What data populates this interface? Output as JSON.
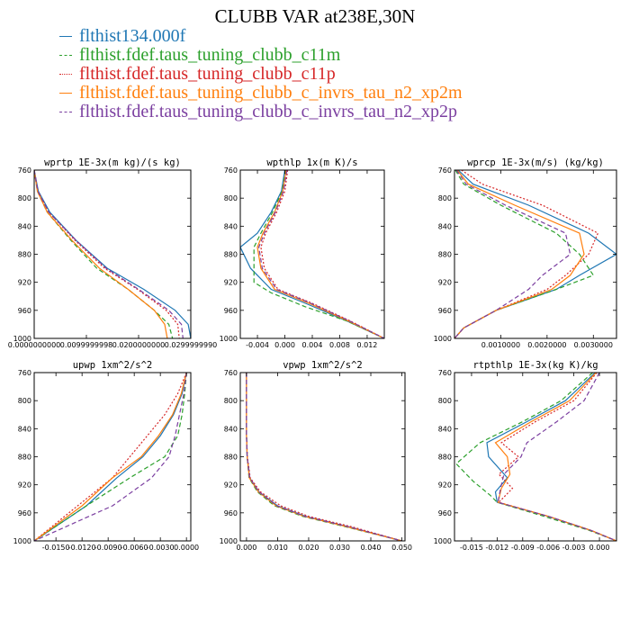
{
  "title": "CLUBB VAR at238E,30N",
  "legend": [
    {
      "label": "flthist134.000f",
      "color": "#1f77b4",
      "dash": "solid"
    },
    {
      "label": "flthist.fdef.taus_tuning_clubb_c11m",
      "color": "#2ca02c",
      "dash": "dashed"
    },
    {
      "label": "flthist.fdef.taus_tuning_clubb_c11p",
      "color": "#d62728",
      "dash": "dotted"
    },
    {
      "label": "flthist.fdef.taus_tuning_clubb_c_invrs_tau_n2_xp2m",
      "color": "#ff7f0e",
      "dash": "solid"
    },
    {
      "label": "flthist.fdef.taus_tuning_clubb_c_invrs_tau_n2_xp2p",
      "color": "#7b3fa0",
      "dash": "dashed"
    }
  ],
  "chart_data": [
    {
      "type": "line",
      "title": "wprtp  1E-3x(m kg)/(s kg)",
      "xlim": [
        0,
        0.03
      ],
      "ylim": [
        760,
        1000
      ],
      "y_reversed": true,
      "xticks": [
        "0.0000000000",
        "0.0099999998",
        "0.0200000000",
        "0.0299999990"
      ],
      "xtick_values": [
        0,
        0.01,
        0.02,
        0.03
      ],
      "yticks": [
        "760",
        "800",
        "840",
        "880",
        "920",
        "960",
        "1000"
      ],
      "ytick_values": [
        760,
        800,
        840,
        880,
        920,
        960,
        1000
      ],
      "series": [
        {
          "x": [
            0,
            0.0008,
            0.003,
            0.008,
            0.014,
            0.021,
            0.027,
            0.0295,
            0.03
          ],
          "y": [
            760,
            790,
            820,
            860,
            900,
            930,
            960,
            980,
            1000
          ]
        },
        {
          "x": [
            0,
            0.0006,
            0.0025,
            0.007,
            0.012,
            0.018,
            0.023,
            0.0258,
            0.0265
          ],
          "y": [
            760,
            790,
            820,
            860,
            900,
            930,
            960,
            980,
            1000
          ]
        },
        {
          "x": [
            0,
            0.0007,
            0.0028,
            0.0078,
            0.0135,
            0.0198,
            0.0253,
            0.0275,
            0.0278
          ],
          "y": [
            760,
            790,
            820,
            860,
            900,
            930,
            960,
            980,
            1000
          ]
        },
        {
          "x": [
            0,
            0.0006,
            0.0025,
            0.0072,
            0.0125,
            0.018,
            0.023,
            0.025,
            0.0255
          ],
          "y": [
            760,
            790,
            820,
            860,
            900,
            930,
            960,
            980,
            1000
          ]
        },
        {
          "x": [
            0,
            0.0007,
            0.0028,
            0.008,
            0.0138,
            0.02,
            0.0258,
            0.0282,
            0.0285
          ],
          "y": [
            760,
            790,
            820,
            860,
            900,
            930,
            960,
            980,
            1000
          ]
        }
      ]
    },
    {
      "type": "line",
      "title": "wpthlp  1x(m K)/s",
      "xlim": [
        -0.0065,
        0.0145
      ],
      "ylim": [
        760,
        1000
      ],
      "y_reversed": true,
      "xticks": [
        "-0.004",
        "0.000",
        "0.004",
        "0.008",
        "0.012"
      ],
      "xtick_values": [
        -0.004,
        0,
        0.004,
        0.008,
        0.012
      ],
      "yticks": [
        "760",
        "800",
        "840",
        "880",
        "920",
        "960",
        "1000"
      ],
      "ytick_values": [
        760,
        800,
        840,
        880,
        920,
        960,
        1000
      ],
      "series": [
        {
          "x": [
            0,
            -0.0005,
            -0.002,
            -0.004,
            -0.0065,
            -0.005,
            -0.002,
            0.003,
            0.009,
            0.0145
          ],
          "y": [
            760,
            790,
            820,
            850,
            870,
            900,
            930,
            950,
            975,
            1000
          ]
        },
        {
          "x": [
            0.0001,
            -0.0004,
            -0.0018,
            -0.0035,
            -0.0045,
            -0.0045,
            -0.002,
            0.003,
            0.009,
            0.0145
          ],
          "y": [
            760,
            790,
            820,
            850,
            870,
            920,
            935,
            955,
            975,
            1000
          ]
        },
        {
          "x": [
            0.0004,
            0,
            -0.0012,
            -0.0028,
            -0.0035,
            -0.003,
            -0.001,
            0.004,
            0.0095,
            0.0145
          ],
          "y": [
            760,
            790,
            820,
            850,
            870,
            900,
            930,
            950,
            975,
            1000
          ]
        },
        {
          "x": [
            0.0002,
            -0.0003,
            -0.0015,
            -0.0032,
            -0.004,
            -0.0035,
            -0.0015,
            0.0035,
            0.0092,
            0.0145
          ],
          "y": [
            760,
            790,
            820,
            850,
            870,
            900,
            930,
            950,
            975,
            1000
          ]
        },
        {
          "x": [
            0.0003,
            -0.0002,
            -0.0014,
            -0.003,
            -0.0038,
            -0.0033,
            -0.0012,
            0.0038,
            0.0094,
            0.0145
          ],
          "y": [
            760,
            790,
            820,
            850,
            870,
            900,
            930,
            950,
            975,
            1000
          ]
        }
      ]
    },
    {
      "type": "line",
      "title": "wprcp  1E-3x(m/s) (kg/kg)",
      "xlim": [
        0,
        0.0035
      ],
      "ylim": [
        760,
        1000
      ],
      "y_reversed": true,
      "xticks": [
        "0.0010000",
        "0.0020000",
        "0.0030000"
      ],
      "xtick_values": [
        0.001,
        0.002,
        0.003
      ],
      "yticks": [
        "760",
        "800",
        "840",
        "880",
        "920",
        "960",
        "1000"
      ],
      "ytick_values": [
        760,
        800,
        840,
        880,
        920,
        960,
        1000
      ],
      "series": [
        {
          "x": [
            8e-05,
            0.0004,
            0.0016,
            0.0029,
            0.0035,
            0.0027,
            0.0022,
            0.0009,
            0.0002,
            0
          ],
          "y": [
            760,
            780,
            810,
            850,
            880,
            910,
            930,
            960,
            985,
            1000
          ]
        },
        {
          "x": [
            2e-05,
            0.0002,
            0.001,
            0.0022,
            0.0027,
            0.003,
            0.0022,
            0.0009,
            0.0002,
            0
          ],
          "y": [
            760,
            780,
            810,
            850,
            880,
            910,
            930,
            960,
            985,
            1000
          ]
        },
        {
          "x": [
            0.00015,
            0.0006,
            0.0019,
            0.0031,
            0.0029,
            0.0024,
            0.002,
            0.0009,
            0.0002,
            0
          ],
          "y": [
            760,
            780,
            810,
            850,
            880,
            910,
            930,
            960,
            985,
            1000
          ]
        },
        {
          "x": [
            6e-05,
            0.0003,
            0.0013,
            0.0027,
            0.0028,
            0.0025,
            0.0021,
            0.0009,
            0.0002,
            0
          ],
          "y": [
            760,
            780,
            810,
            850,
            880,
            910,
            930,
            960,
            985,
            1000
          ]
        },
        {
          "x": [
            4e-05,
            0.00025,
            0.0011,
            0.0024,
            0.0025,
            0.0019,
            0.0016,
            0.0009,
            0.0002,
            0
          ],
          "y": [
            760,
            780,
            810,
            850,
            880,
            910,
            930,
            960,
            985,
            1000
          ]
        }
      ]
    },
    {
      "type": "line",
      "title": "upwp  1xm^2/s^2",
      "xlim": [
        -0.0175,
        0.0005
      ],
      "ylim": [
        760,
        1000
      ],
      "y_reversed": true,
      "xticks": [
        "-0.0150",
        "-0.0120",
        "-0.0090",
        "-0.0060",
        "-0.0030",
        "0.0000"
      ],
      "xtick_values": [
        -0.015,
        -0.012,
        -0.009,
        -0.006,
        -0.003,
        0
      ],
      "yticks": [
        "760",
        "800",
        "840",
        "880",
        "920",
        "960",
        "1000"
      ],
      "ytick_values": [
        760,
        800,
        840,
        880,
        920,
        960,
        1000
      ],
      "series": [
        {
          "x": [
            0,
            -0.0005,
            -0.0015,
            -0.003,
            -0.005,
            -0.008,
            -0.0115,
            -0.0175
          ],
          "y": [
            760,
            790,
            820,
            850,
            880,
            910,
            950,
            1000
          ]
        },
        {
          "x": [
            0,
            -0.0002,
            -0.0005,
            -0.001,
            -0.0025,
            -0.0065,
            -0.0115,
            -0.0175
          ],
          "y": [
            760,
            790,
            820,
            850,
            880,
            910,
            950,
            1000
          ]
        },
        {
          "x": [
            0,
            -0.001,
            -0.0025,
            -0.0045,
            -0.0065,
            -0.0085,
            -0.0125,
            -0.0175
          ],
          "y": [
            760,
            790,
            820,
            850,
            880,
            910,
            950,
            1000
          ]
        },
        {
          "x": [
            0,
            -0.0006,
            -0.0016,
            -0.0032,
            -0.0052,
            -0.0085,
            -0.012,
            -0.0175
          ],
          "y": [
            760,
            790,
            820,
            850,
            880,
            910,
            950,
            1000
          ]
        },
        {
          "x": [
            0,
            -0.0003,
            -0.0008,
            -0.0013,
            -0.002,
            -0.004,
            -0.0085,
            -0.0175
          ],
          "y": [
            760,
            790,
            820,
            850,
            880,
            910,
            950,
            1000
          ]
        }
      ]
    },
    {
      "type": "line",
      "title": "vpwp  1xm^2/s^2",
      "xlim": [
        -0.002,
        0.051
      ],
      "ylim": [
        760,
        1000
      ],
      "y_reversed": true,
      "xticks": [
        "0.000",
        "0.010",
        "0.020",
        "0.030",
        "0.040",
        "0.050"
      ],
      "xtick_values": [
        0,
        0.01,
        0.02,
        0.03,
        0.04,
        0.05
      ],
      "yticks": [
        "760",
        "800",
        "840",
        "880",
        "920",
        "960",
        "1000"
      ],
      "ytick_values": [
        760,
        800,
        840,
        880,
        920,
        960,
        1000
      ],
      "series": [
        {
          "x": [
            0,
            0,
            0,
            0.0002,
            0.001,
            0.004,
            0.01,
            0.019,
            0.033,
            0.05
          ],
          "y": [
            760,
            800,
            850,
            880,
            910,
            930,
            950,
            965,
            980,
            1000
          ]
        },
        {
          "x": [
            0,
            0,
            0,
            0.0002,
            0.0008,
            0.0035,
            0.009,
            0.018,
            0.032,
            0.05
          ],
          "y": [
            760,
            800,
            850,
            880,
            910,
            930,
            950,
            965,
            980,
            1000
          ]
        },
        {
          "x": [
            0,
            0,
            0,
            0.0003,
            0.0012,
            0.0045,
            0.011,
            0.02,
            0.034,
            0.05
          ],
          "y": [
            760,
            800,
            850,
            880,
            910,
            930,
            950,
            965,
            980,
            1000
          ]
        },
        {
          "x": [
            0,
            0,
            0,
            0.0002,
            0.0009,
            0.0038,
            0.0095,
            0.0185,
            0.0325,
            0.05
          ],
          "y": [
            760,
            800,
            850,
            880,
            910,
            930,
            950,
            965,
            980,
            1000
          ]
        },
        {
          "x": [
            0,
            0,
            0,
            0.0002,
            0.001,
            0.004,
            0.0098,
            0.0188,
            0.033,
            0.05
          ],
          "y": [
            760,
            800,
            850,
            880,
            910,
            930,
            950,
            965,
            980,
            1000
          ]
        }
      ]
    },
    {
      "type": "line",
      "title": "rtpthlp  1E-3x(kg K)/kg",
      "xlim": [
        -0.017,
        0.002
      ],
      "ylim": [
        760,
        1000
      ],
      "y_reversed": true,
      "xticks": [
        "-0.015",
        "-0.012",
        "-0.009",
        "-0.006",
        "-0.003",
        "0.000"
      ],
      "xtick_values": [
        -0.015,
        -0.012,
        -0.009,
        -0.006,
        -0.003,
        0
      ],
      "yticks": [
        "760",
        "800",
        "840",
        "880",
        "920",
        "960",
        "1000"
      ],
      "ytick_values": [
        760,
        800,
        840,
        880,
        920,
        960,
        1000
      ],
      "series": [
        {
          "x": [
            -0.0005,
            -0.004,
            -0.0085,
            -0.0132,
            -0.013,
            -0.0108,
            -0.0122,
            -0.012,
            -0.006,
            -0.001,
            0.002
          ],
          "y": [
            760,
            800,
            830,
            860,
            880,
            910,
            930,
            945,
            965,
            985,
            1000
          ]
        },
        {
          "x": [
            -0.0008,
            -0.0045,
            -0.009,
            -0.014,
            -0.0168,
            -0.0148,
            -0.0128,
            -0.012,
            -0.0065,
            -0.0012,
            0.002
          ],
          "y": [
            760,
            800,
            830,
            860,
            890,
            915,
            935,
            945,
            965,
            985,
            1000
          ]
        },
        {
          "x": [
            -0.0003,
            -0.003,
            -0.0075,
            -0.0115,
            -0.0095,
            -0.0118,
            -0.0102,
            -0.0118,
            -0.006,
            -0.001,
            0.002
          ],
          "y": [
            760,
            800,
            830,
            860,
            880,
            905,
            925,
            945,
            965,
            985,
            1000
          ]
        },
        {
          "x": [
            -0.0004,
            -0.0035,
            -0.008,
            -0.0122,
            -0.0108,
            -0.0105,
            -0.0115,
            -0.0119,
            -0.006,
            -0.001,
            0.002
          ],
          "y": [
            760,
            800,
            830,
            860,
            880,
            905,
            925,
            945,
            965,
            985,
            1000
          ]
        },
        {
          "x": [
            0,
            -0.0018,
            -0.005,
            -0.0085,
            -0.0092,
            -0.0112,
            -0.0116,
            -0.0119,
            -0.006,
            -0.001,
            0.002
          ],
          "y": [
            760,
            800,
            830,
            860,
            880,
            905,
            925,
            945,
            965,
            985,
            1000
          ]
        }
      ]
    }
  ]
}
